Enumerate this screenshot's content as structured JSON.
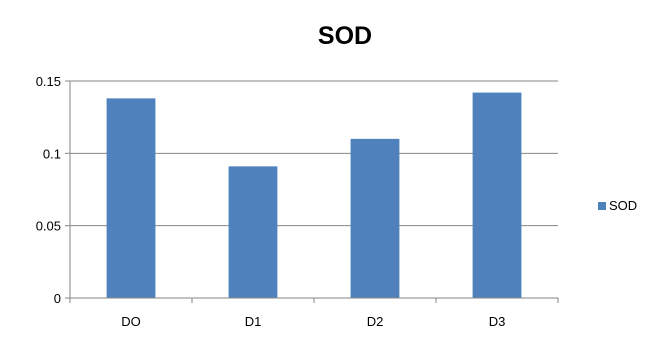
{
  "chart_data": {
    "type": "bar",
    "title": "SOD",
    "categories": [
      "DO",
      "D1",
      "D2",
      "D3"
    ],
    "series": [
      {
        "name": "SOD",
        "values": [
          0.138,
          0.091,
          0.11,
          0.142
        ],
        "color": "#4F81BD"
      }
    ],
    "ylim": [
      0,
      0.15
    ],
    "yticks": [
      0,
      0.05,
      0.1,
      0.15
    ],
    "ytick_labels": [
      "0",
      "0.05",
      "0.1",
      "0.15"
    ],
    "grid": true,
    "legend": "right"
  },
  "colors": {
    "gridline": "#868686",
    "axis": "#868686",
    "bar": "#4F81BD"
  }
}
